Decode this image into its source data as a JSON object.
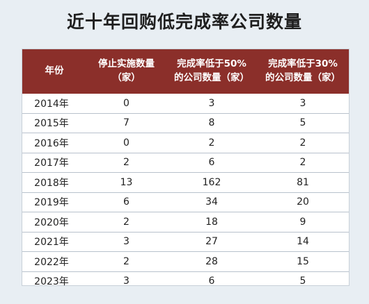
{
  "title": "近十年回购低完成率公司数量",
  "table": {
    "headers": [
      {
        "line1": "年份",
        "line2": ""
      },
      {
        "line1": "停止实施数量",
        "line2": "（家）"
      },
      {
        "line1": "完成率低于50%",
        "line2": "的公司数量（家）"
      },
      {
        "line1": "完成率低于30%",
        "line2": "的公司数量（家）"
      }
    ],
    "rows": [
      [
        "2014年",
        "0",
        "3",
        "3"
      ],
      [
        "2015年",
        "7",
        "8",
        "5"
      ],
      [
        "2016年",
        "0",
        "2",
        "2"
      ],
      [
        "2017年",
        "2",
        "6",
        "2"
      ],
      [
        "2018年",
        "13",
        "162",
        "81"
      ],
      [
        "2019年",
        "6",
        "34",
        "20"
      ],
      [
        "2020年",
        "2",
        "18",
        "9"
      ],
      [
        "2021年",
        "3",
        "27",
        "14"
      ],
      [
        "2022年",
        "2",
        "28",
        "15"
      ],
      [
        "2023年",
        "3",
        "6",
        "5"
      ]
    ]
  },
  "chart_data": {
    "type": "table",
    "title": "近十年回购低完成率公司数量",
    "columns": [
      "年份",
      "停止实施数量（家）",
      "完成率低于50%的公司数量（家）",
      "完成率低于30%的公司数量（家）"
    ],
    "categories": [
      "2014年",
      "2015年",
      "2016年",
      "2017年",
      "2018年",
      "2019年",
      "2020年",
      "2021年",
      "2022年",
      "2023年"
    ],
    "series": [
      {
        "name": "停止实施数量（家）",
        "values": [
          0,
          7,
          0,
          2,
          13,
          6,
          2,
          3,
          2,
          3
        ]
      },
      {
        "name": "完成率低于50%的公司数量（家）",
        "values": [
          3,
          8,
          2,
          6,
          162,
          34,
          18,
          27,
          28,
          6
        ]
      },
      {
        "name": "完成率低于30%的公司数量（家）",
        "values": [
          3,
          5,
          2,
          2,
          81,
          20,
          9,
          14,
          15,
          5
        ]
      }
    ]
  },
  "colors": {
    "header_bg": "#8b2f2a",
    "page_bg": "#e8eef3"
  }
}
